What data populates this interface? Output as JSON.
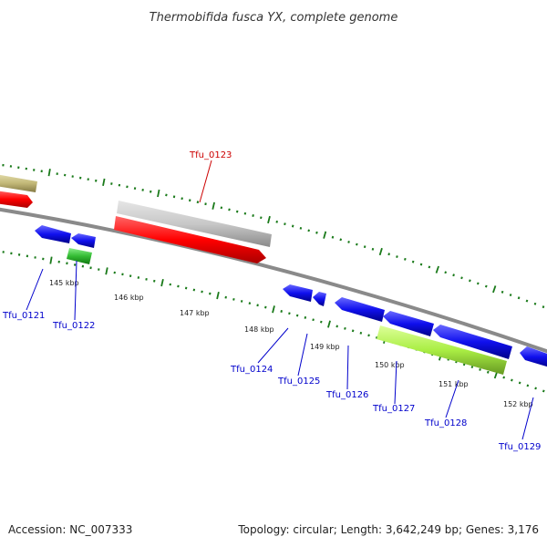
{
  "title": "Thermobifida fusca YX, complete genome",
  "accession_text": "Accession: NC_007333",
  "summary_text": "Topology: circular; Length: 3,642,249 bp; Genes: 3,176",
  "scale_labels": [
    "145 kbp",
    "146 kbp",
    "147 kbp",
    "148 kbp",
    "149 kbp",
    "150 kbp",
    "151 kbp",
    "152 kbp"
  ],
  "genes": [
    {
      "label": "Tfu_0121",
      "color": "#0000cc"
    },
    {
      "label": "Tfu_0122",
      "color": "#0000cc"
    },
    {
      "label": "Tfu_0123",
      "color": "#cc0000"
    },
    {
      "label": "Tfu_0124",
      "color": "#0000cc"
    },
    {
      "label": "Tfu_0125",
      "color": "#0000cc"
    },
    {
      "label": "Tfu_0126",
      "color": "#0000cc"
    },
    {
      "label": "Tfu_0127",
      "color": "#0000cc"
    },
    {
      "label": "Tfu_0128",
      "color": "#0000cc"
    },
    {
      "label": "Tfu_0129",
      "color": "#0000cc"
    }
  ],
  "colors": {
    "backbone": "#888888",
    "tick": "#1a7a1a",
    "cds": "#ff0000",
    "cds_gray": "#c8c8c8",
    "olive": "#c2b878",
    "blue": "#1010ee",
    "green": "#33bb33",
    "lime": "#aaee44"
  }
}
